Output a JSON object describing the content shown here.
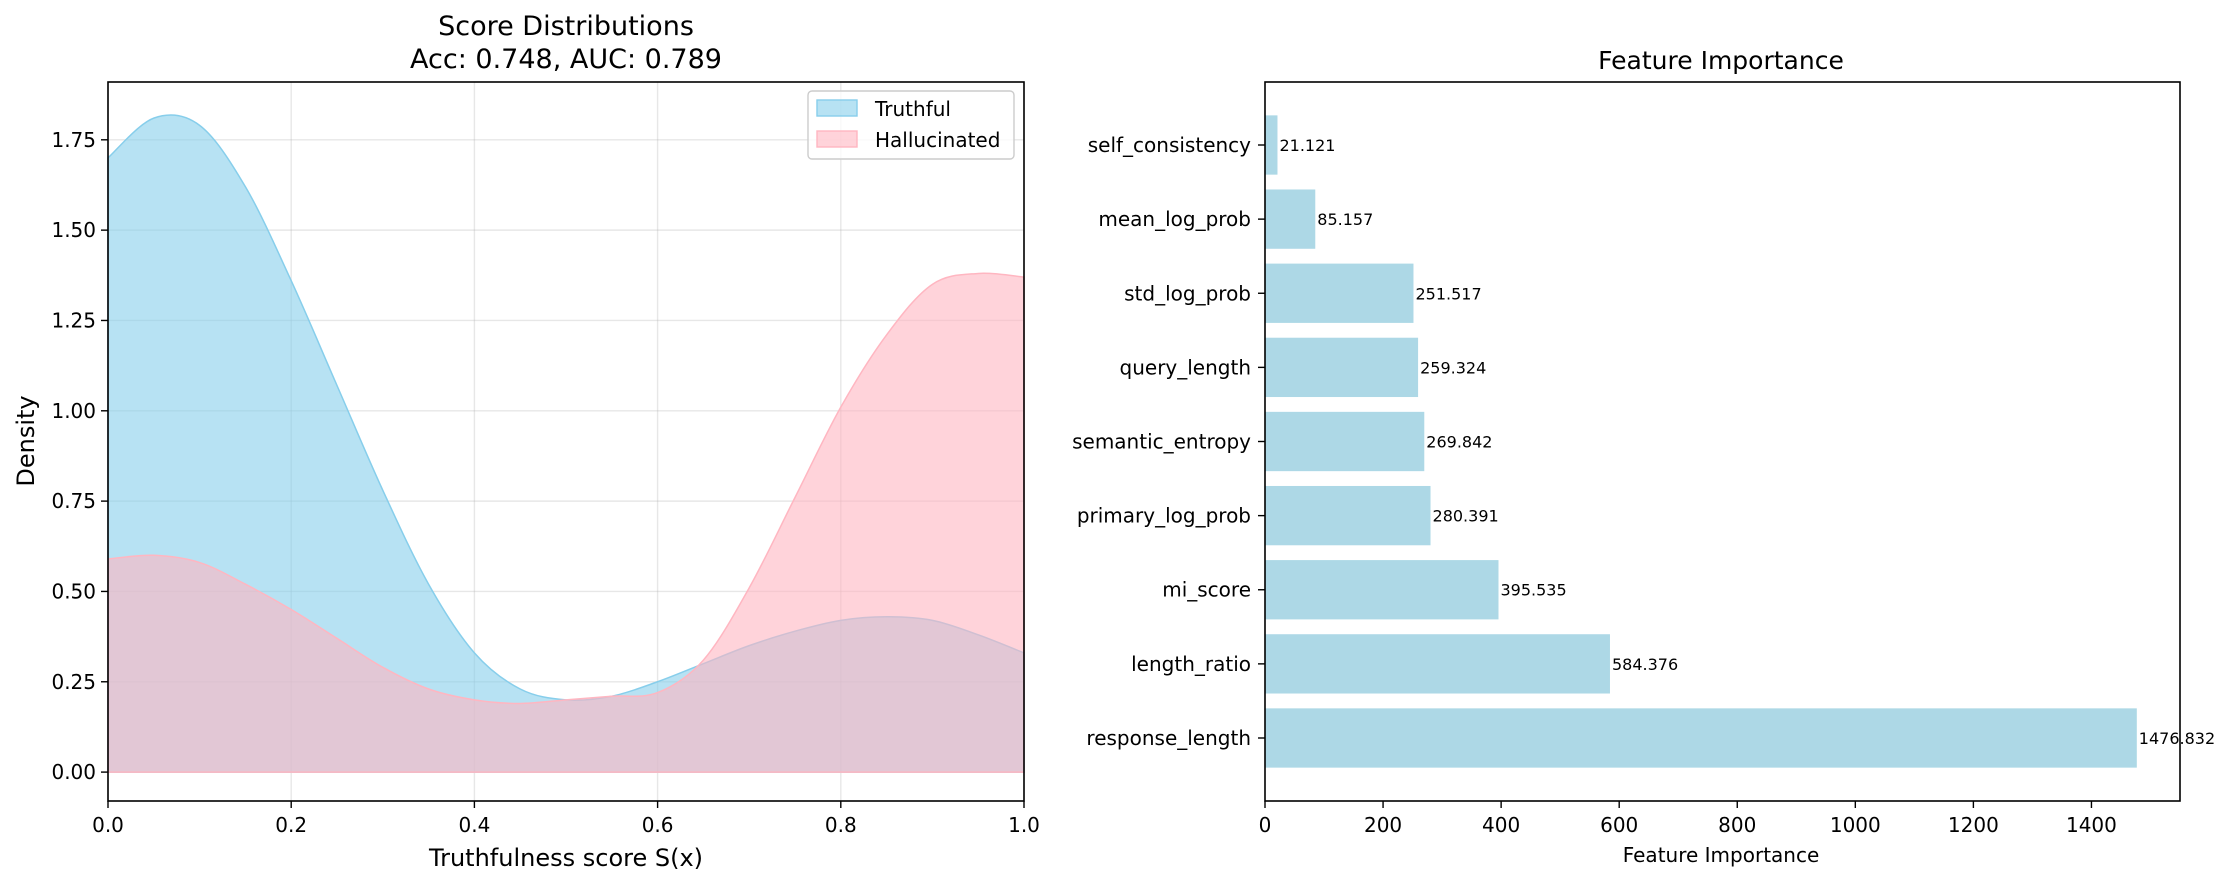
{
  "chart_data": [
    {
      "type": "area",
      "title": "Score Distributions",
      "subtitle": "Acc: 0.748, AUC: 0.789",
      "xlabel": "Truthfulness score S(x)",
      "ylabel": "Density",
      "xlim": [
        0.0,
        1.0
      ],
      "ylim": [
        -0.08,
        1.91
      ],
      "x_ticks": [
        "0.0",
        "0.2",
        "0.4",
        "0.6",
        "0.8",
        "1.0"
      ],
      "y_ticks": [
        "0.00",
        "0.25",
        "0.50",
        "0.75",
        "1.00",
        "1.25",
        "1.50",
        "1.75"
      ],
      "grid": true,
      "legend_position": "top-right",
      "x": [
        0.0,
        0.05,
        0.1,
        0.15,
        0.2,
        0.25,
        0.3,
        0.35,
        0.4,
        0.45,
        0.5,
        0.55,
        0.6,
        0.65,
        0.7,
        0.75,
        0.8,
        0.85,
        0.9,
        0.95,
        1.0
      ],
      "series": [
        {
          "name": "Truthful",
          "color": "#87ceeb",
          "values": [
            1.7,
            1.81,
            1.79,
            1.62,
            1.36,
            1.07,
            0.78,
            0.52,
            0.33,
            0.23,
            0.2,
            0.21,
            0.25,
            0.3,
            0.35,
            0.39,
            0.42,
            0.43,
            0.42,
            0.38,
            0.33
          ]
        },
        {
          "name": "Hallucinated",
          "color": "#ffb6c1",
          "values": [
            0.59,
            0.6,
            0.58,
            0.52,
            0.45,
            0.37,
            0.29,
            0.23,
            0.2,
            0.19,
            0.2,
            0.21,
            0.22,
            0.31,
            0.51,
            0.76,
            1.01,
            1.21,
            1.35,
            1.38,
            1.37
          ]
        }
      ]
    },
    {
      "type": "bar",
      "orientation": "horizontal",
      "title": "Feature Importance",
      "xlabel": "Feature Importance",
      "ylabel": "",
      "xlim": [
        0,
        1550
      ],
      "x_ticks": [
        0,
        200,
        400,
        600,
        800,
        1000,
        1200,
        1400
      ],
      "grid": false,
      "bar_color": "#add8e6",
      "categories": [
        "response_length",
        "length_ratio",
        "mi_score",
        "primary_log_prob",
        "semantic_entropy",
        "query_length",
        "std_log_prob",
        "mean_log_prob",
        "self_consistency"
      ],
      "values": [
        1476.832,
        584.376,
        395.535,
        280.391,
        269.842,
        259.324,
        251.517,
        85.157,
        21.121
      ],
      "value_labels": [
        "1476.832",
        "584.376",
        "395.535",
        "280.391",
        "269.842",
        "259.324",
        "251.517",
        "85.157",
        "21.121"
      ]
    }
  ]
}
